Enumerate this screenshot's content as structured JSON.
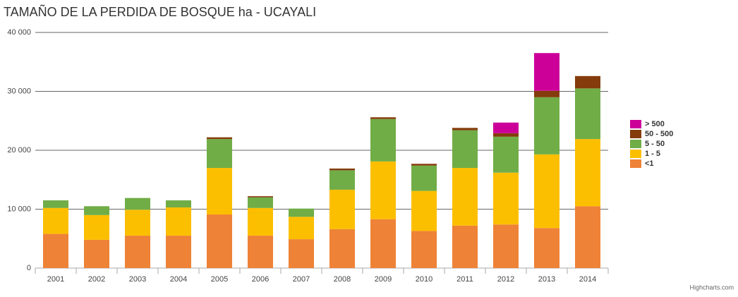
{
  "chart_data": {
    "type": "stacked_bar",
    "title": "TAMAÑO DE LA PERDIDA DE BOSQUE ha - UCAYALI",
    "credit": "Highcharts.com",
    "categories": [
      "2001",
      "2002",
      "2003",
      "2004",
      "2005",
      "2006",
      "2007",
      "2008",
      "2009",
      "2010",
      "2011",
      "2012",
      "2013",
      "2014"
    ],
    "series": [
      {
        "name": "<1",
        "color": "#ee8236",
        "values": [
          5800,
          4800,
          5500,
          5500,
          9100,
          5500,
          4900,
          6600,
          8300,
          6300,
          7200,
          7400,
          6800,
          10500
        ]
      },
      {
        "name": "1 - 5",
        "color": "#fcbf00",
        "values": [
          4400,
          4200,
          4400,
          4800,
          7900,
          4700,
          3800,
          6700,
          9800,
          6800,
          9800,
          8800,
          12500,
          11400
        ]
      },
      {
        "name": "5 - 50",
        "color": "#70ad47",
        "values": [
          1300,
          1500,
          2000,
          1200,
          4900,
          1800,
          1400,
          3300,
          7200,
          4300,
          6400,
          6100,
          9700,
          8600
        ]
      },
      {
        "name": "50 - 500",
        "color": "#843c0c",
        "values": [
          0,
          0,
          0,
          0,
          300,
          200,
          0,
          300,
          300,
          300,
          400,
          600,
          1100,
          2100
        ]
      },
      {
        "name": "> 500",
        "color": "#cc0099",
        "values": [
          0,
          0,
          0,
          0,
          0,
          0,
          0,
          0,
          0,
          0,
          0,
          1800,
          6400,
          0
        ]
      }
    ],
    "ylim": [
      0,
      40000
    ],
    "yticks": [
      0,
      {
        "value": 10000,
        "label": "10 000"
      },
      {
        "value": 20000,
        "label": "20 000"
      },
      {
        "value": 30000,
        "label": "30 000"
      },
      {
        "value": 40000,
        "label": "40 000"
      }
    ],
    "grid": true,
    "legend": "right"
  }
}
